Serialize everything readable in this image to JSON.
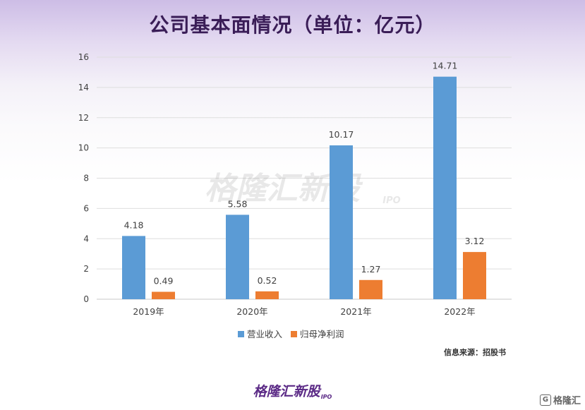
{
  "title": "公司基本面情况（单位：亿元）",
  "chart_data": {
    "type": "bar",
    "categories": [
      "2019年",
      "2020年",
      "2021年",
      "2022年"
    ],
    "series": [
      {
        "name": "营业收入",
        "values": [
          4.18,
          5.58,
          10.17,
          14.71
        ],
        "color": "#5b9bd5"
      },
      {
        "name": "归母净利润",
        "values": [
          0.49,
          0.52,
          1.27,
          3.12
        ],
        "color": "#ed7d31"
      }
    ],
    "ylim": [
      0,
      16
    ],
    "yticks": [
      0,
      2,
      4,
      6,
      8,
      10,
      12,
      14,
      16
    ],
    "grid": true,
    "legend": "bottom"
  },
  "watermark": {
    "text": "格隆汇新股",
    "sub": "IPO"
  },
  "source": "信息来源：招股书",
  "footer": {
    "logo": "格隆汇新股",
    "sub": "IPO"
  },
  "corner": {
    "icon": "G",
    "text": "格隆汇"
  }
}
